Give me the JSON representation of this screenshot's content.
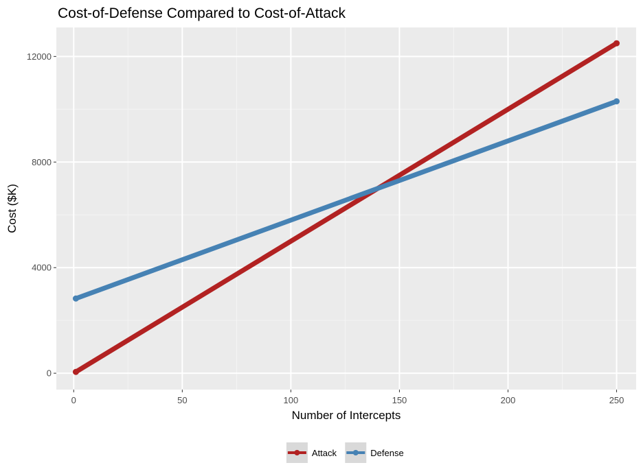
{
  "colors": {
    "attack": "#b22222",
    "defense": "#4682b4",
    "panel": "#ebebeb",
    "grid_major": "#ffffff",
    "grid_minor": "#f4f4f4"
  },
  "chart_data": {
    "type": "line",
    "title": "Cost-of-Defense Compared to Cost-of-Attack",
    "xlabel": "Number of Intercepts",
    "ylabel": "Cost ($K)",
    "xlim": [
      -8,
      259
    ],
    "ylim": [
      -620,
      13100
    ],
    "x_ticks": [
      0,
      50,
      100,
      150,
      200,
      250
    ],
    "x_tick_labels": [
      "0",
      "50",
      "100",
      "150",
      "200",
      "250"
    ],
    "y_ticks": [
      0,
      4000,
      8000,
      12000
    ],
    "y_tick_labels": [
      "0",
      "4000",
      "8000",
      "12000"
    ],
    "grid": true,
    "legend_position": "bottom",
    "series": [
      {
        "name": "Attack",
        "color_key": "attack",
        "x": [
          1,
          250
        ],
        "y": [
          50,
          12500
        ]
      },
      {
        "name": "Defense",
        "color_key": "defense",
        "x": [
          1,
          250
        ],
        "y": [
          2830,
          10300
        ]
      }
    ]
  }
}
